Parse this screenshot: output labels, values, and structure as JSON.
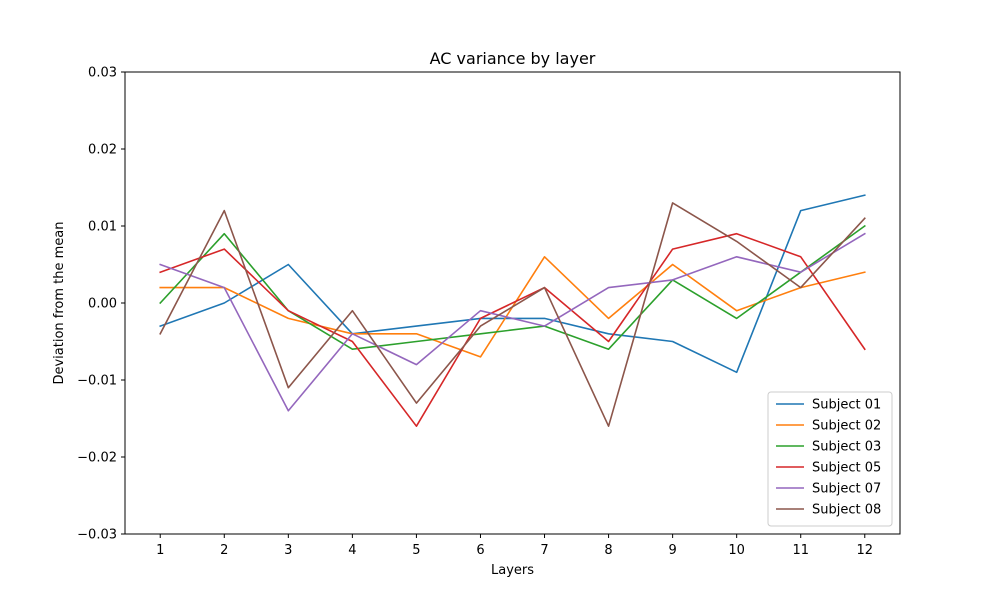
{
  "chart_data": {
    "type": "line",
    "title": "AC variance by layer",
    "xlabel": "Layers",
    "ylabel": "Deviation from the mean",
    "x": [
      1,
      2,
      3,
      4,
      5,
      6,
      7,
      8,
      9,
      10,
      11,
      12
    ],
    "xlim": [
      0.45,
      12.55
    ],
    "ylim": [
      -0.03,
      0.03
    ],
    "x_ticks": [
      "1",
      "2",
      "3",
      "4",
      "5",
      "6",
      "7",
      "8",
      "9",
      "10",
      "11",
      "12"
    ],
    "y_ticks": [
      {
        "value": -0.03,
        "label": "−0.03"
      },
      {
        "value": -0.02,
        "label": "−0.02"
      },
      {
        "value": -0.01,
        "label": "−0.01"
      },
      {
        "value": 0.0,
        "label": "0.00"
      },
      {
        "value": 0.01,
        "label": "0.01"
      },
      {
        "value": 0.02,
        "label": "0.02"
      },
      {
        "value": 0.03,
        "label": "0.03"
      }
    ],
    "grid": false,
    "legend_position": "lower-right",
    "series": [
      {
        "name": "Subject 01",
        "color": "#1f77b4",
        "values": [
          -0.003,
          0.0,
          0.005,
          -0.004,
          -0.003,
          -0.002,
          -0.002,
          -0.004,
          -0.005,
          -0.009,
          0.012,
          0.014
        ]
      },
      {
        "name": "Subject 02",
        "color": "#ff7f0e",
        "values": [
          0.002,
          0.002,
          -0.002,
          -0.004,
          -0.004,
          -0.007,
          0.006,
          -0.002,
          0.005,
          -0.001,
          0.002,
          0.004
        ]
      },
      {
        "name": "Subject 03",
        "color": "#2ca02c",
        "values": [
          0.0,
          0.009,
          -0.001,
          -0.006,
          -0.005,
          -0.004,
          -0.003,
          -0.006,
          0.003,
          -0.002,
          0.004,
          0.01
        ]
      },
      {
        "name": "Subject 05",
        "color": "#d62728",
        "values": [
          0.004,
          0.007,
          -0.001,
          -0.005,
          -0.016,
          -0.002,
          0.002,
          -0.005,
          0.007,
          0.009,
          0.006,
          -0.006
        ]
      },
      {
        "name": "Subject 07",
        "color": "#9467bd",
        "values": [
          0.005,
          0.002,
          -0.014,
          -0.004,
          -0.008,
          -0.001,
          -0.003,
          0.002,
          0.003,
          0.006,
          0.004,
          0.009
        ]
      },
      {
        "name": "Subject 08",
        "color": "#8c564b",
        "values": [
          -0.004,
          0.012,
          -0.011,
          -0.001,
          -0.013,
          -0.003,
          0.002,
          -0.016,
          0.013,
          0.008,
          0.002,
          0.011
        ]
      }
    ]
  }
}
